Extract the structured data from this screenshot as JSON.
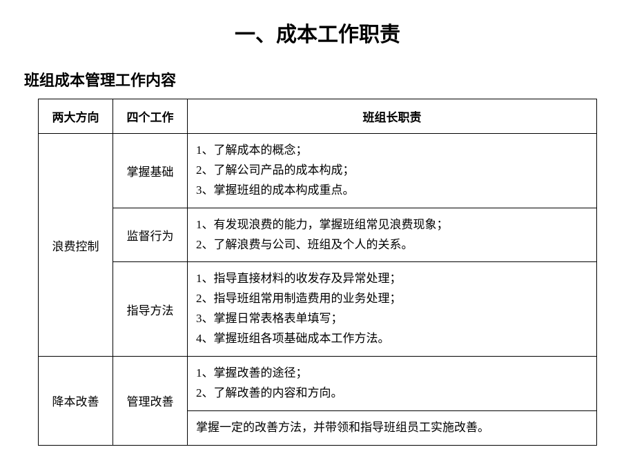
{
  "title": "一、成本工作职责",
  "subtitle": "班组成本管理工作内容",
  "table": {
    "headers": {
      "direction": "两大方向",
      "work": "四个工作",
      "duty": "班组长职责"
    },
    "rows": {
      "direction1": "浪费控制",
      "direction2": "降本改善",
      "work1": "掌握基础",
      "work2": "监督行为",
      "work3": "指导方法",
      "work4": "管理改善",
      "duty1": "1、了解成本的概念；\n2、了解公司产品的成本构成；\n3、掌握班组的成本构成重点。",
      "duty2": "1、有发现浪费的能力，掌握班组常见浪费现象；\n2、了解浪费与公司、班组及个人的关系。",
      "duty3": "1、指导直接材料的收发存及异常处理；\n2、指导班组常用制造费用的业务处理；\n3、掌握日常表格表单填写；\n4、掌握班组各项基础成本工作方法。",
      "duty4": "1、掌握改善的途径；\n2、了解改善的内容和方向。",
      "duty5": "掌握一定的改善方法，并带领和指导班组员工实施改善。"
    }
  },
  "styles": {
    "background_color": "#ffffff",
    "text_color": "#000000",
    "border_color": "#000000",
    "title_fontsize": 30,
    "subtitle_fontsize": 22,
    "cell_fontsize": 17
  }
}
